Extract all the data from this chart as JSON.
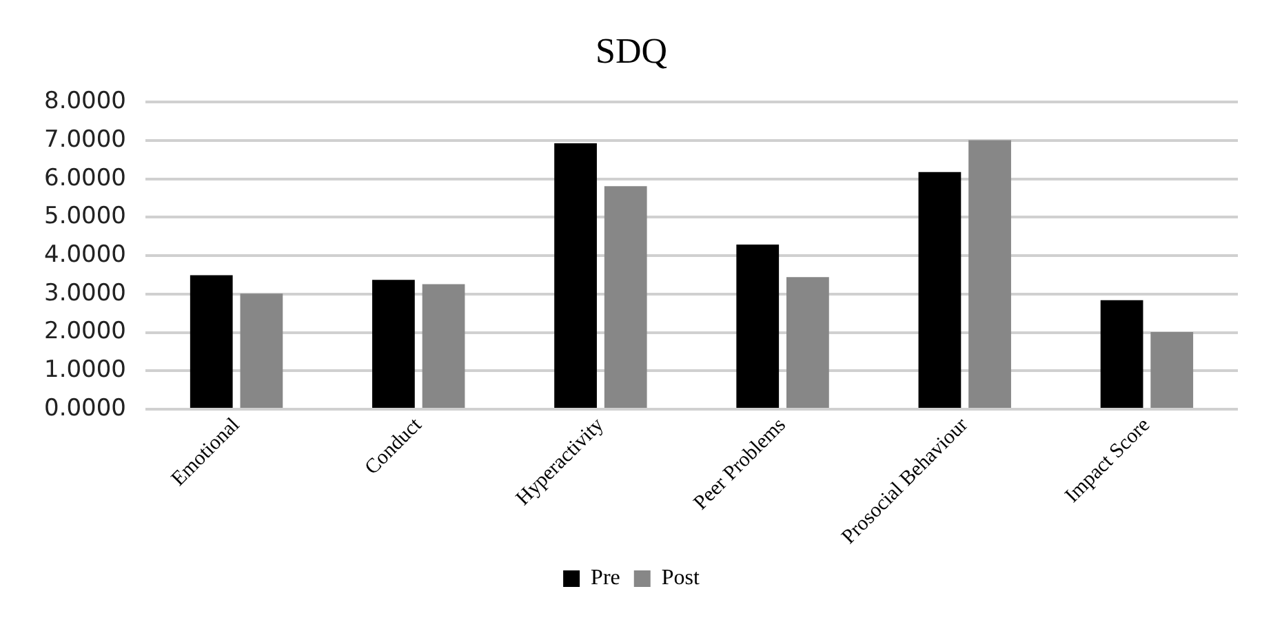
{
  "chart_data": {
    "type": "bar",
    "title": "SDQ",
    "categories": [
      "Emotional",
      "Conduct",
      "Hyperactivity",
      "Peer Problems",
      "Prosocial Behaviour",
      "Impact Score"
    ],
    "series": [
      {
        "name": "Pre",
        "color": "#000000",
        "values": [
          3.49,
          3.37,
          6.93,
          4.29,
          6.18,
          2.84
        ]
      },
      {
        "name": "Post",
        "color": "#878787",
        "values": [
          3.01,
          3.26,
          5.81,
          3.44,
          7.01,
          2.01
        ]
      }
    ],
    "ylim": [
      0,
      8
    ],
    "yticks": [
      {
        "value": 0,
        "label": "0.0000"
      },
      {
        "value": 1,
        "label": "1.0000"
      },
      {
        "value": 2,
        "label": "2.0000"
      },
      {
        "value": 3,
        "label": "3.0000"
      },
      {
        "value": 4,
        "label": "4.0000"
      },
      {
        "value": 5,
        "label": "5.0000"
      },
      {
        "value": 6,
        "label": "6.0000"
      },
      {
        "value": 7,
        "label": "7.0000"
      },
      {
        "value": 8,
        "label": "8.0000"
      }
    ],
    "grid": "y",
    "legend": "bottom"
  }
}
